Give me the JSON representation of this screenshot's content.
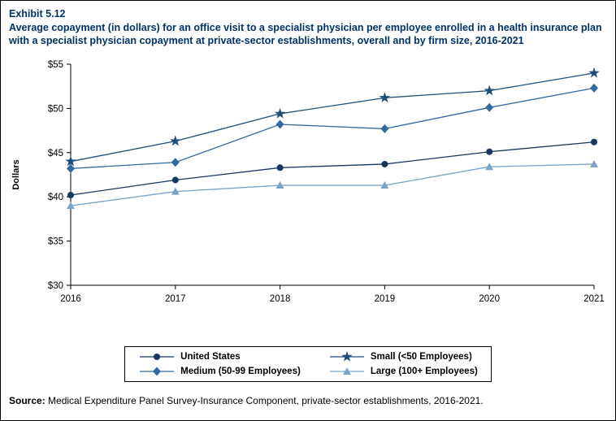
{
  "header": {
    "exhibit": "Exhibit 5.12",
    "title": "Average copayment (in dollars) for an office visit to a specialist physician per employee enrolled in a health insurance plan with a specialist physician copayment at private-sector establishments, overall and by firm size, 2016-2021"
  },
  "chart_data": {
    "type": "line",
    "x": [
      "2016",
      "2017",
      "2018",
      "2019",
      "2020",
      "2021"
    ],
    "xlabel": "",
    "ylabel": "Dollars",
    "ylim": [
      30,
      55
    ],
    "ytick_step": 5,
    "ytick_prefix": "$",
    "grid": false,
    "legend_position": "bottom",
    "series": [
      {
        "name": "United States",
        "marker": "circle",
        "color": "#17375e",
        "values": [
          40.2,
          41.9,
          43.3,
          43.7,
          45.1,
          46.2
        ]
      },
      {
        "name": "Small (<50 Employees)",
        "marker": "star",
        "color": "#1f4e79",
        "values": [
          44.0,
          46.3,
          49.4,
          51.2,
          52.0,
          54.0
        ]
      },
      {
        "name": "Medium (50-99 Employees)",
        "marker": "diamond",
        "color": "#31699e",
        "values": [
          43.2,
          43.9,
          48.2,
          47.7,
          50.1,
          52.3
        ]
      },
      {
        "name": "Large (100+ Employees)",
        "marker": "triangle",
        "color": "#7ba3c8",
        "values": [
          39.0,
          40.6,
          41.3,
          41.3,
          43.4,
          43.7
        ]
      }
    ]
  },
  "source": {
    "label": "Source:",
    "text": " Medical Expenditure Panel Survey-Insurance Component, private-sector establishments, 2016-2021."
  }
}
